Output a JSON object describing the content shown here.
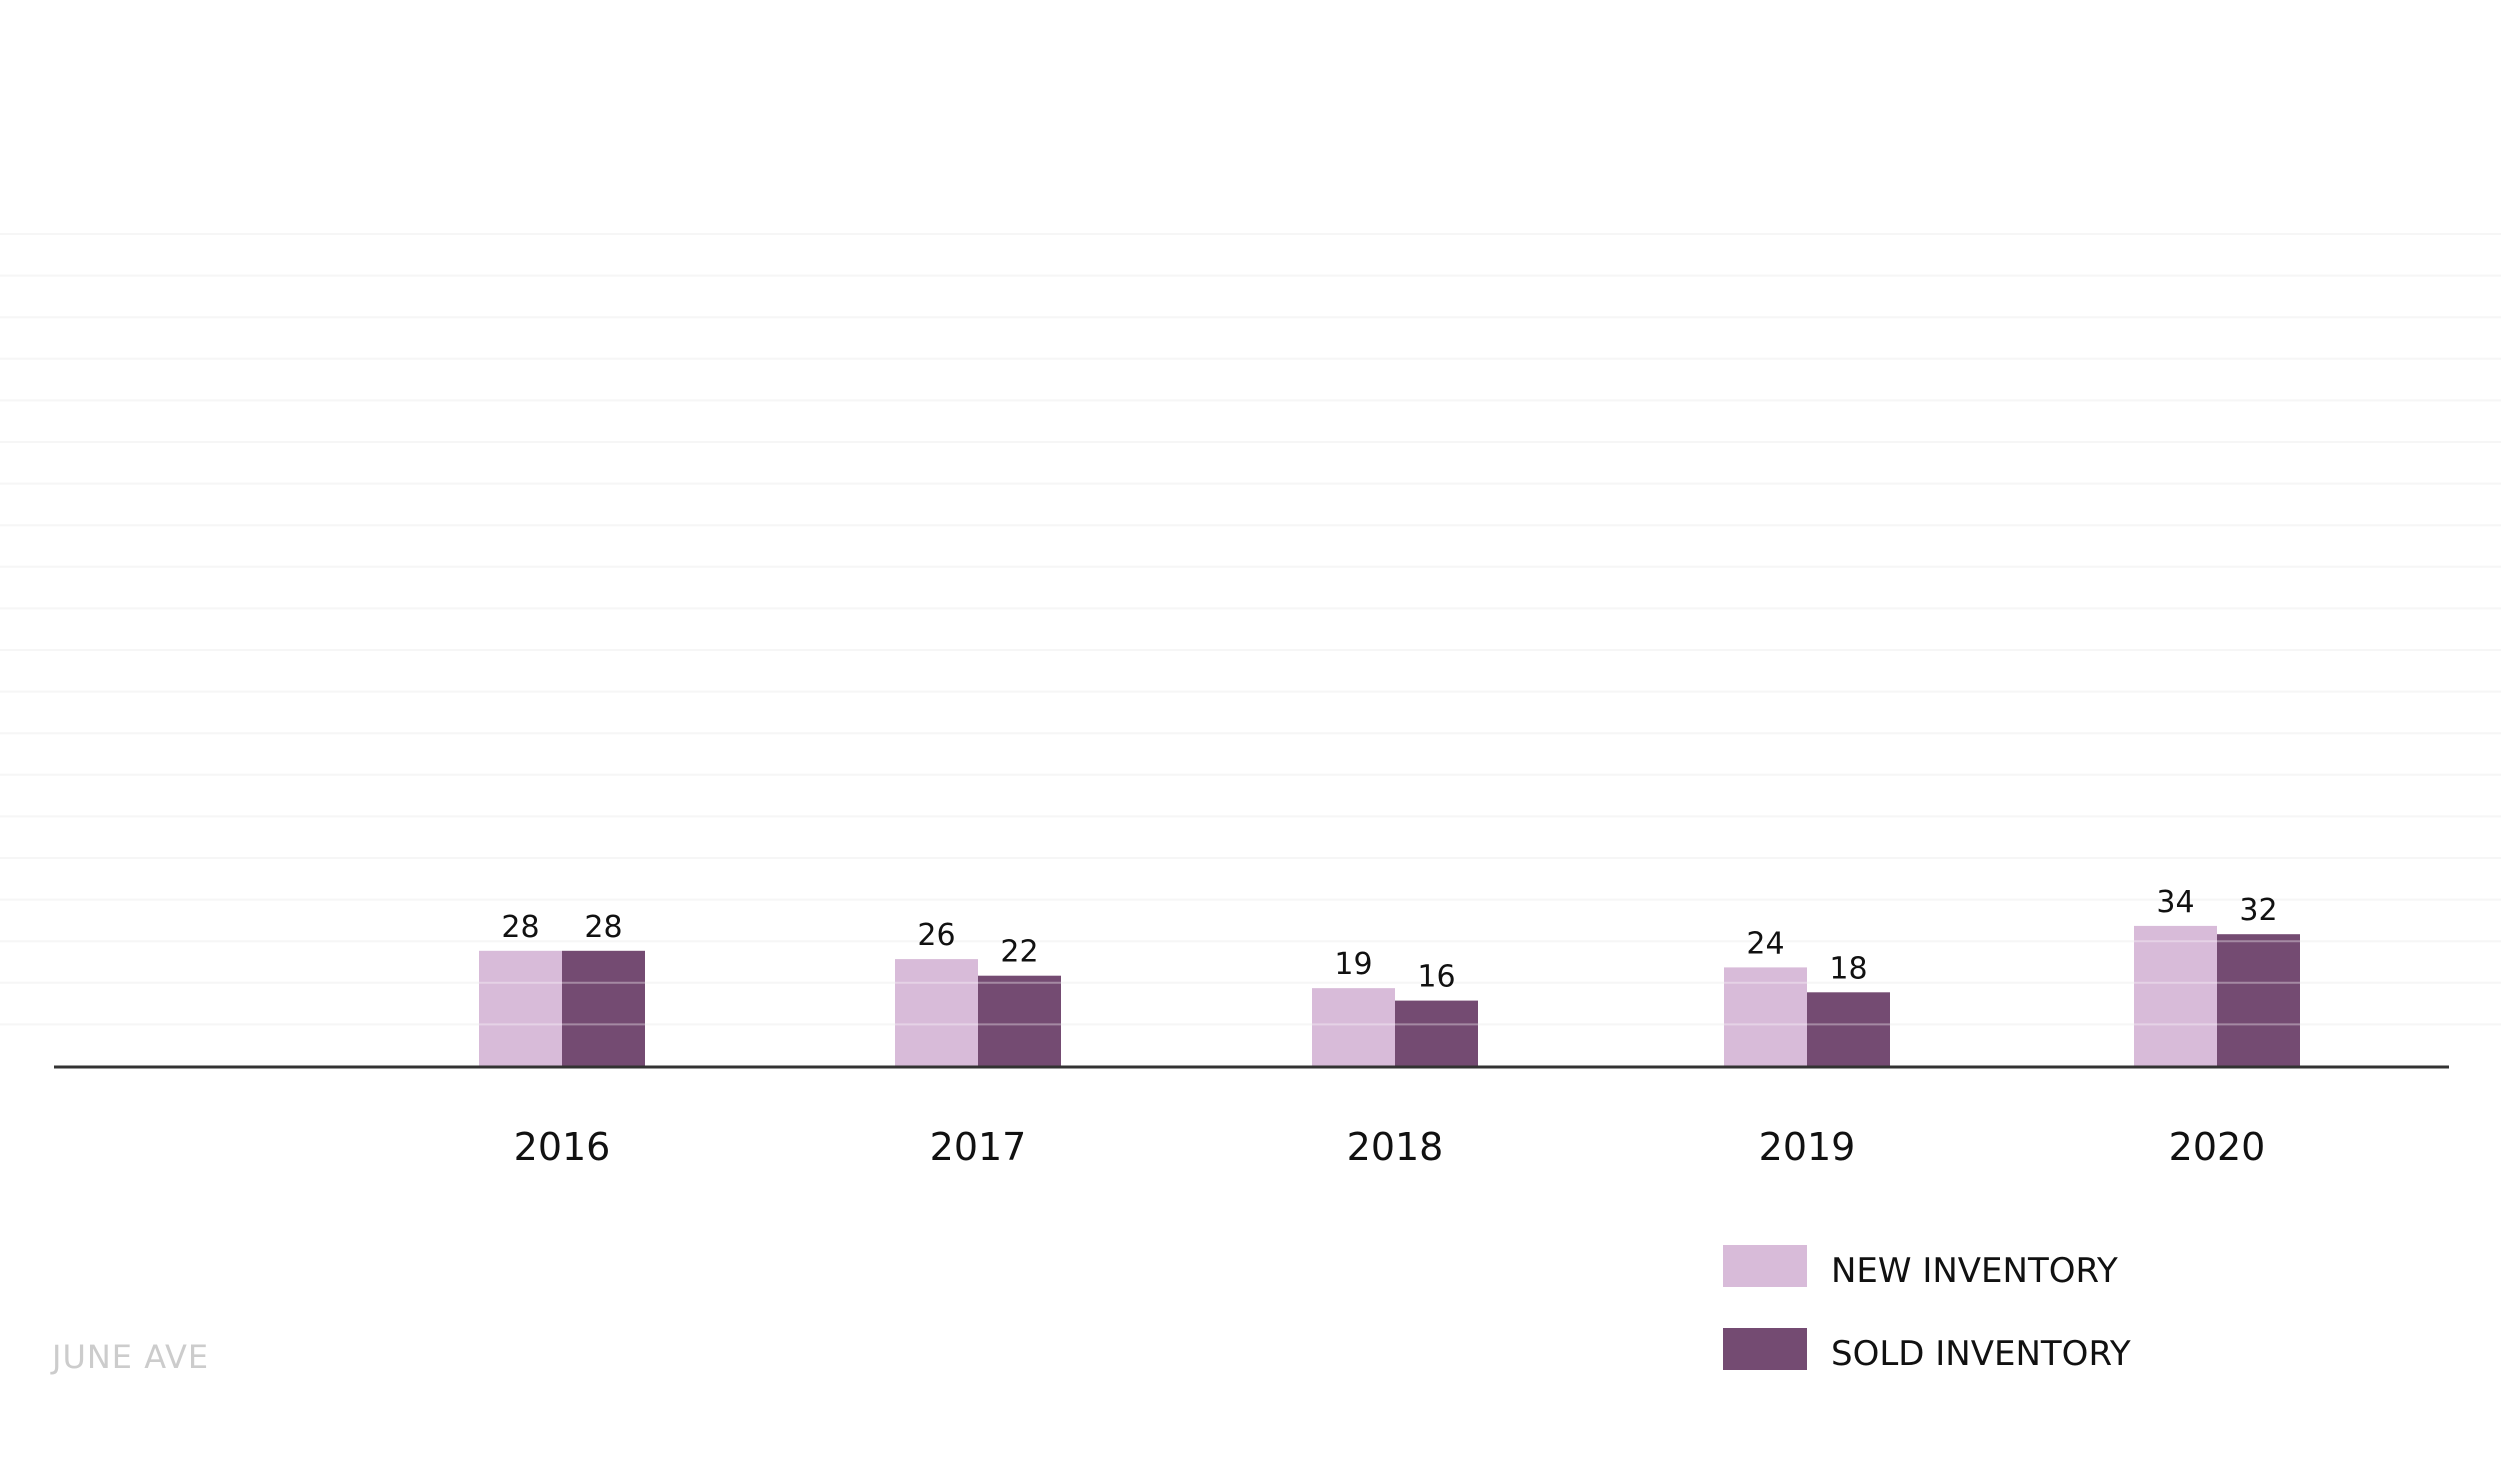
{
  "brand": "JUNE AVE",
  "chart_data": {
    "type": "bar",
    "categories": [
      "2016",
      "2017",
      "2018",
      "2019",
      "2020"
    ],
    "series": [
      {
        "name": "NEW INVENTORY",
        "values": [
          28,
          26,
          19,
          24,
          34
        ],
        "color": "#d8bbd9"
      },
      {
        "name": "SOLD INVENTORY",
        "values": [
          28,
          22,
          16,
          18,
          32
        ],
        "color": "#744b72"
      }
    ],
    "title": "",
    "xlabel": "",
    "ylabel": "",
    "ylim": [
      0,
      200
    ],
    "grid": true,
    "legend": "bottom-right",
    "data_labels": true
  }
}
